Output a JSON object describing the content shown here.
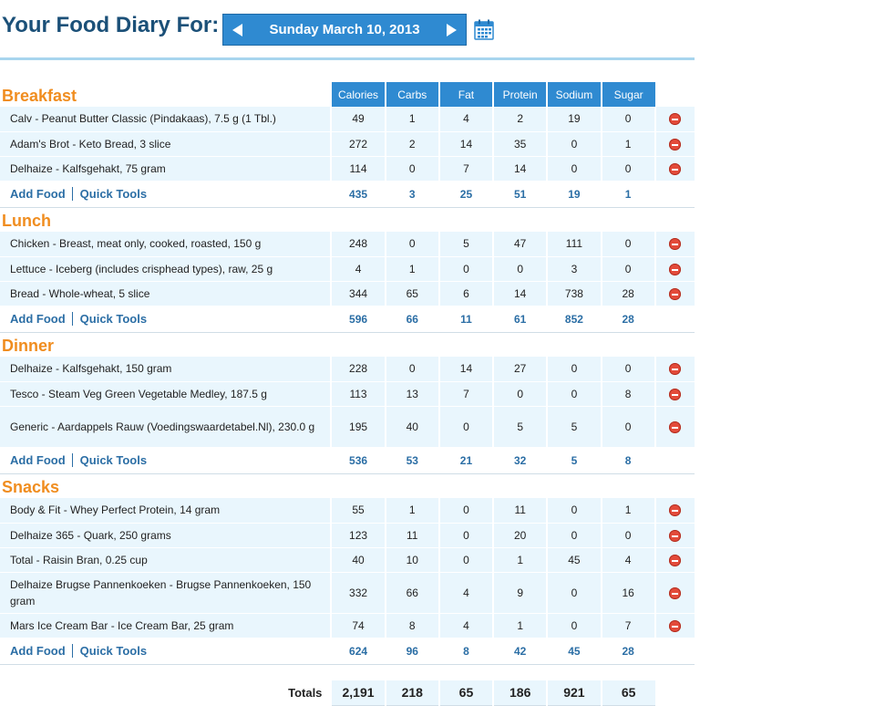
{
  "header": {
    "title": "Your Food Diary For:",
    "date": "Sunday March 10, 2013"
  },
  "columns": [
    "Calories",
    "Carbs",
    "Fat",
    "Protein",
    "Sodium",
    "Sugar"
  ],
  "links": {
    "add_food": "Add Food",
    "quick_tools": "Quick Tools"
  },
  "colors": {
    "accent_blue": "#2f8ad1",
    "meal_orange": "#f08d1f",
    "row_bg": "#e9f6fd",
    "delete_red": "#e34b3a"
  },
  "meals": [
    {
      "name": "Breakfast",
      "foods": [
        {
          "name": "Calv - Peanut Butter Classic (Pindakaas), 7.5 g (1 Tbl.)",
          "values": [
            "49",
            "1",
            "4",
            "2",
            "19",
            "0"
          ]
        },
        {
          "name": "Adam's Brot - Keto Bread, 3 slice",
          "values": [
            "272",
            "2",
            "14",
            "35",
            "0",
            "1"
          ]
        },
        {
          "name": "Delhaize - Kalfsgehakt, 75 gram",
          "values": [
            "114",
            "0",
            "7",
            "14",
            "0",
            "0"
          ]
        }
      ],
      "totals": [
        "435",
        "3",
        "25",
        "51",
        "19",
        "1"
      ]
    },
    {
      "name": "Lunch",
      "foods": [
        {
          "name": "Chicken - Breast, meat only, cooked, roasted, 150 g",
          "values": [
            "248",
            "0",
            "5",
            "47",
            "111",
            "0"
          ]
        },
        {
          "name": "Lettuce - Iceberg (includes crisphead types), raw, 25 g",
          "values": [
            "4",
            "1",
            "0",
            "0",
            "3",
            "0"
          ]
        },
        {
          "name": "Bread - Whole-wheat, 5 slice",
          "values": [
            "344",
            "65",
            "6",
            "14",
            "738",
            "28"
          ]
        }
      ],
      "totals": [
        "596",
        "66",
        "11",
        "61",
        "852",
        "28"
      ]
    },
    {
      "name": "Dinner",
      "foods": [
        {
          "name": "Delhaize - Kalfsgehakt, 150 gram",
          "values": [
            "228",
            "0",
            "14",
            "27",
            "0",
            "0"
          ]
        },
        {
          "name": "Tesco - Steam Veg Green Vegetable Medley, 187.5 g",
          "values": [
            "113",
            "13",
            "7",
            "0",
            "0",
            "8"
          ]
        },
        {
          "name": "Generic - Aardappels Rauw (Voedingswaardetabel.Nl), 230.0 g",
          "values": [
            "195",
            "40",
            "0",
            "5",
            "5",
            "0"
          ]
        }
      ],
      "totals": [
        "536",
        "53",
        "21",
        "32",
        "5",
        "8"
      ]
    },
    {
      "name": "Snacks",
      "foods": [
        {
          "name": "Body & Fit - Whey Perfect Protein, 14 gram",
          "values": [
            "55",
            "1",
            "0",
            "11",
            "0",
            "1"
          ]
        },
        {
          "name": "Delhaize 365 - Quark, 250 grams",
          "values": [
            "123",
            "11",
            "0",
            "20",
            "0",
            "0"
          ]
        },
        {
          "name": "Total - Raisin Bran, 0.25 cup",
          "values": [
            "40",
            "10",
            "0",
            "1",
            "45",
            "4"
          ]
        },
        {
          "name": "Delhaize Brugse Pannenkoeken - Brugse Pannenkoeken, 150 gram",
          "values": [
            "332",
            "66",
            "4",
            "9",
            "0",
            "16"
          ]
        },
        {
          "name": "Mars Ice Cream Bar - Ice Cream Bar, 25 gram",
          "values": [
            "74",
            "8",
            "4",
            "1",
            "0",
            "7"
          ]
        }
      ],
      "totals": [
        "624",
        "96",
        "8",
        "42",
        "45",
        "28"
      ]
    }
  ],
  "grand_totals": {
    "label": "Totals",
    "values": [
      "2,191",
      "218",
      "65",
      "186",
      "921",
      "65"
    ]
  }
}
